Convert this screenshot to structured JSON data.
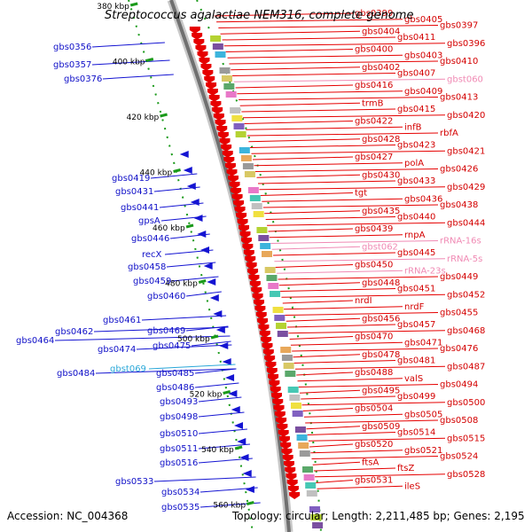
{
  "title": "Streptococcus agalactiae NEM316, complete genome",
  "footer": {
    "accession": "Accession: NC_004368",
    "summary": "Topology: circular; Length: 2,211,485 bp; Genes: 2,195"
  },
  "kbp_labels": [
    "380 kbp",
    "400 kbp",
    "420 kbp",
    "440 kbp",
    "460 kbp",
    "480 kbp",
    "500 kbp",
    "520 kbp",
    "540 kbp",
    "560 kbp"
  ],
  "colors": {
    "forward": "#e60000",
    "reverse": "#1414d2",
    "rna": "#f08ab4",
    "special": "#2aa8d8",
    "backbone": "#808080"
  },
  "genes_right": [
    "gbs0399",
    "gbs0405",
    "gbs0397",
    "gbs0404",
    "gbs0411",
    "gbs0396",
    "gbs0400",
    "gbs0403",
    "gbs0410",
    "gbs0402",
    "gbs0407",
    "gbst060",
    "gbs0416",
    "gbs0409",
    "gbs0413",
    "trmB",
    "gbs0415",
    "gbs0420",
    "gbs0422",
    "infB",
    "rbfA",
    "gbs0428",
    "gbs0423",
    "gbs0421",
    "gbs0427",
    "polA",
    "gbs0426",
    "gbs0430",
    "gbs0433",
    "gbs0429",
    "tgt",
    "gbs0436",
    "gbs0438",
    "gbs0435",
    "gbs0440",
    "gbs0444",
    "gbs0439",
    "rnpA",
    "rRNA-16s",
    "gbst062",
    "gbs0445",
    "rRNA-5s",
    "gbs0450",
    "rRNA-23s",
    "gbs0449",
    "gbs0448",
    "gbs0451",
    "gbs0452",
    "nrdI",
    "nrdF",
    "gbs0455",
    "gbs0456",
    "gbs0457",
    "gbs0468",
    "gbs0470",
    "gbs0471",
    "gbs0476",
    "gbs0478",
    "gbs0481",
    "gbs0487",
    "gbs0488",
    "valS",
    "gbs0494",
    "gbs0495",
    "gbs0499",
    "gbs0500",
    "gbs0504",
    "gbs0505",
    "gbs0508",
    "gbs0509",
    "gbs0514",
    "gbs0515",
    "gbs0520",
    "gbs0521",
    "gbs0524",
    "ftsA",
    "ftsZ",
    "gbs0528",
    "gbs0531",
    "ileS"
  ],
  "genes_left": [
    "gbs0356",
    "gbs0357",
    "gbs0376",
    "gbs0419",
    "gbs0431",
    "gbs0441",
    "gpsA",
    "gbs0446",
    "recX",
    "gbs0458",
    "gbs0459",
    "gbs0460",
    "gbs0461",
    "gbs0462",
    "gbs0464",
    "gbs0469",
    "gbs0474",
    "gbs0475",
    "gbs0484",
    "gbst069",
    "gbs0485",
    "gbs0486",
    "gbs0493",
    "gbs0498",
    "gbs0510",
    "gbs0511",
    "gbs0516",
    "gbs0533",
    "gbs0534",
    "gbs0535"
  ]
}
